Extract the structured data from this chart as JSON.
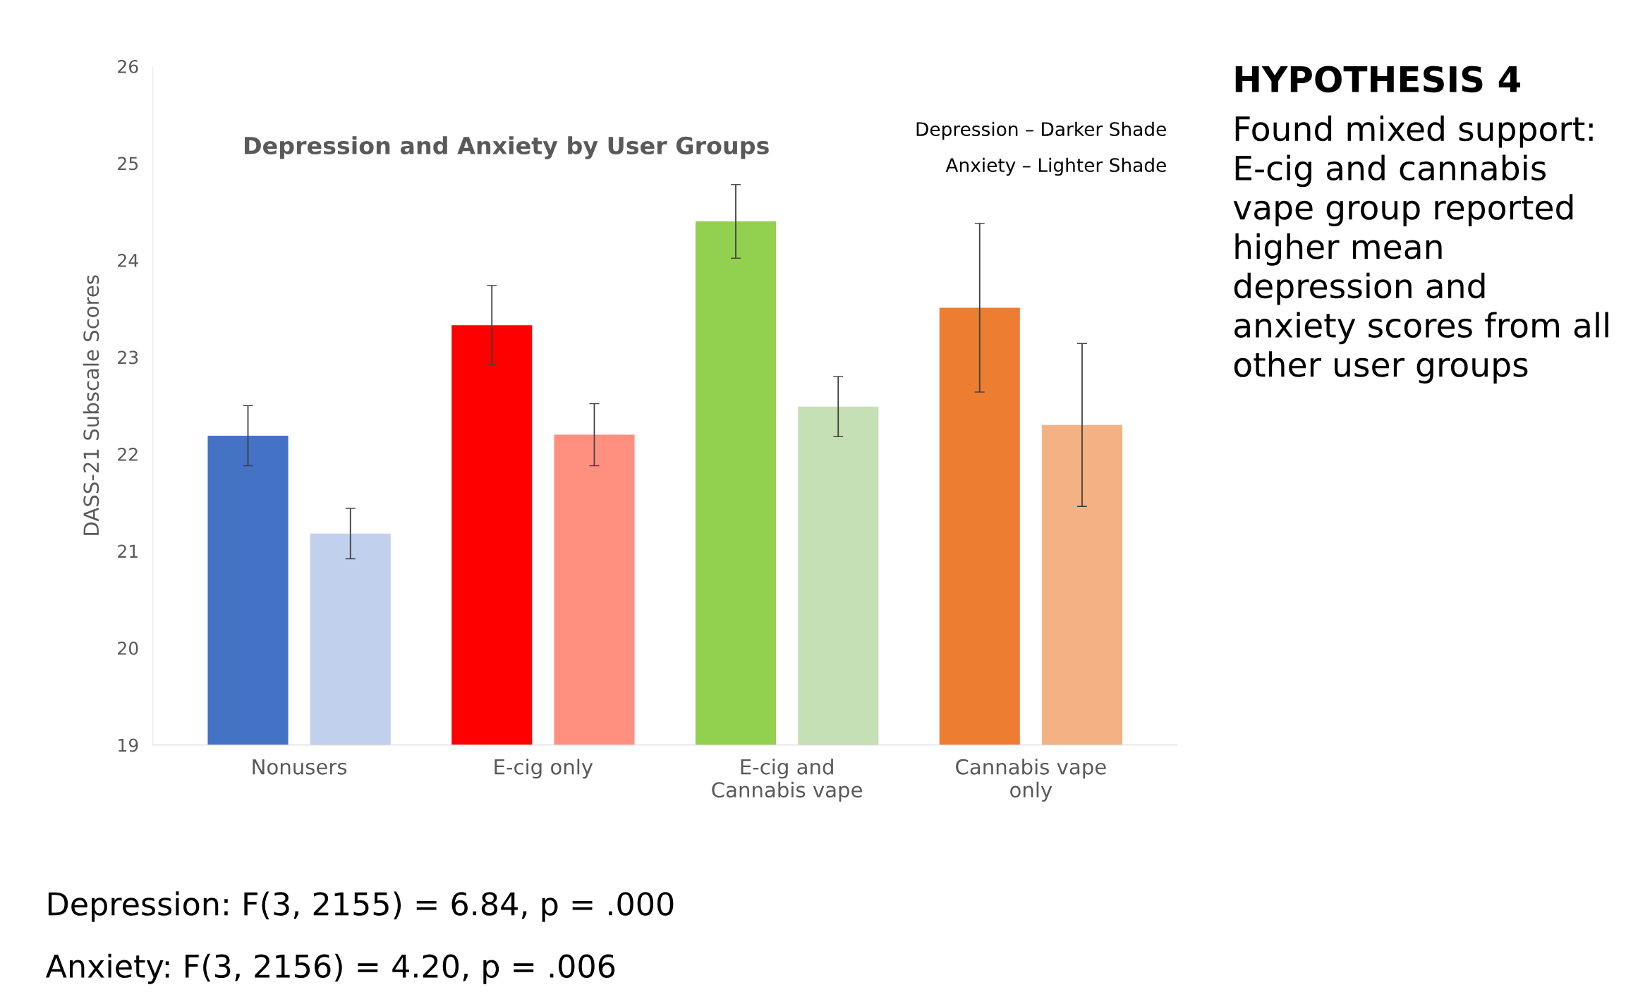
{
  "chart_data": {
    "type": "bar",
    "title": "Depression and Anxiety by User Groups",
    "ylabel": "DASS-21 Subscale Scores",
    "categories": [
      "Nonusers",
      "E-cig only",
      "E-cig and\nCannabis vape",
      "Cannabis vape\nonly"
    ],
    "series": [
      {
        "colors": [
          "#4472c4",
          "#ff0000",
          "#92d050",
          "#ed7d31"
        ],
        "values": [
          22.19,
          23.33,
          24.4,
          23.51
        ],
        "errors": [
          0.31,
          0.41,
          0.38,
          0.87
        ]
      },
      {
        "colors": [
          "#c1d0ec",
          "#ff9080",
          "#c5e0b4",
          "#f4b183"
        ],
        "values": [
          21.18,
          22.2,
          22.49,
          22.3
        ],
        "errors": [
          0.26,
          0.32,
          0.31,
          0.84
        ]
      }
    ],
    "ylim": [
      19,
      26
    ],
    "yticks": [
      19,
      20,
      21,
      22,
      23,
      24,
      25,
      26
    ],
    "grid": false,
    "legend": false,
    "annotations": [
      "Depression – Darker Shade",
      "Anxiety – Lighter Shade",
      "HYPOTHESIS 4",
      "Found mixed support: E-cig and cannabis vape group reported higher mean depression and anxiety scores from all other user groups",
      "Depression: F(3, 2155) = 6.84, p = .000",
      "Anxiety: F(3, 2156) = 4.20, p = .006"
    ]
  }
}
